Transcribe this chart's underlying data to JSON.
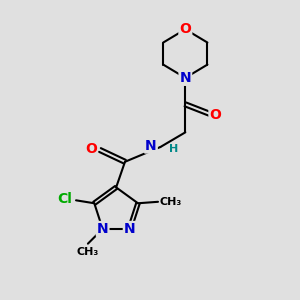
{
  "background_color": "#e0e0e0",
  "bond_color": "#000000",
  "atom_colors": {
    "O": "#ff0000",
    "N": "#0000cc",
    "Cl": "#00aa00",
    "H": "#008888",
    "C": "#000000"
  },
  "font_size_atoms": 10,
  "font_size_small": 8,
  "figsize": [
    3.0,
    3.0
  ],
  "dpi": 100
}
